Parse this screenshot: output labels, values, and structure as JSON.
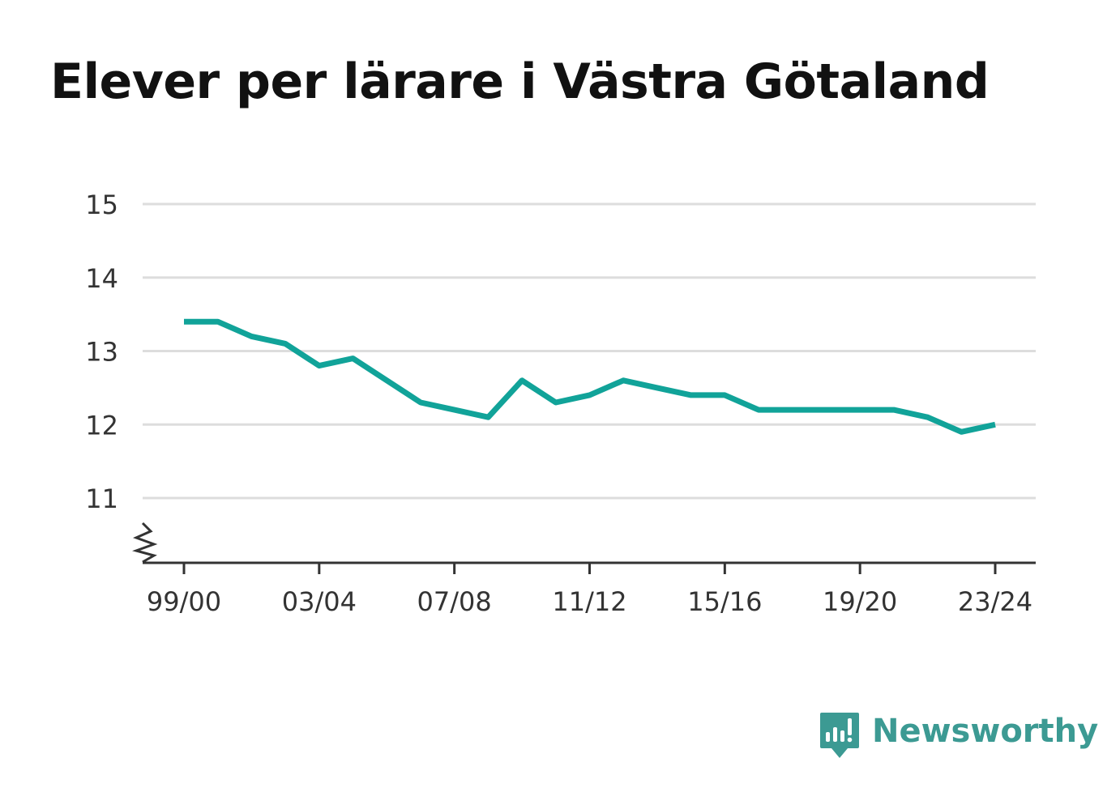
{
  "title": "Elever per lärare i Västra Götaland",
  "brand": {
    "name": "Newsworthy",
    "icon": "newsworthy-logo-icon",
    "color": "#3c9a93"
  },
  "chart_data": {
    "type": "line",
    "title": "Elever per lärare i Västra Götaland",
    "xlabel": "",
    "ylabel": "",
    "x": [
      "99/00",
      "00/01",
      "01/02",
      "02/03",
      "03/04",
      "04/05",
      "05/06",
      "06/07",
      "07/08",
      "08/09",
      "09/10",
      "10/11",
      "11/12",
      "12/13",
      "13/14",
      "14/15",
      "15/16",
      "16/17",
      "17/18",
      "18/19",
      "19/20",
      "20/21",
      "21/22",
      "22/23",
      "23/24"
    ],
    "x_tick_labels": [
      "99/00",
      "03/04",
      "07/08",
      "11/12",
      "15/16",
      "19/20",
      "23/24"
    ],
    "series": [
      {
        "color": "#11a399",
        "values": [
          13.4,
          13.4,
          13.2,
          13.1,
          12.8,
          12.9,
          12.6,
          12.3,
          12.2,
          12.1,
          12.6,
          12.3,
          12.4,
          12.6,
          12.5,
          12.4,
          12.4,
          12.2,
          12.2,
          12.2,
          12.2,
          12.2,
          12.1,
          11.9,
          12.0
        ]
      }
    ],
    "y_ticks": [
      11,
      12,
      13,
      14,
      15
    ],
    "ylim": [
      10.2,
      15
    ],
    "axis_break": true,
    "grid": true,
    "gridline_color": "#dddddd",
    "axis_color": "#333333"
  }
}
